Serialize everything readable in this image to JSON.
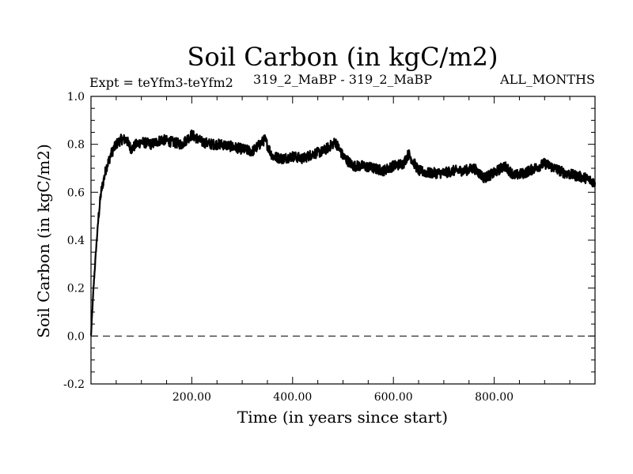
{
  "chart_data": {
    "type": "line",
    "title": "Soil Carbon (in kgC/m2)",
    "subtitle_left": "Expt = teYfm3-teYfm2",
    "subtitle_center": "319_2_MaBP - 319_2_MaBP",
    "subtitle_right": "ALL_MONTHS",
    "xlabel": "Time (in years since start)",
    "ylabel": "Soil Carbon (in kgC/m2)",
    "xlim": [
      0,
      1000
    ],
    "ylim": [
      -0.2,
      1.0
    ],
    "x_ticks": [
      200,
      400,
      600,
      800
    ],
    "x_tick_labels": [
      "200.00",
      "400.00",
      "600.00",
      "800.00"
    ],
    "y_ticks": [
      -0.2,
      0.0,
      0.2,
      0.4,
      0.6,
      0.8,
      1.0
    ],
    "y_tick_labels": [
      "-0.2",
      "0.0",
      "0.2",
      "0.4",
      "0.6",
      "0.8",
      "1.0"
    ],
    "reference_line": {
      "y": 0.0,
      "style": "dashed"
    },
    "series": [
      {
        "name": "Soil Carbon",
        "x": [
          0,
          5,
          10,
          15,
          20,
          25,
          30,
          40,
          50,
          60,
          70,
          80,
          90,
          100,
          120,
          140,
          160,
          180,
          200,
          220,
          240,
          260,
          280,
          300,
          320,
          345,
          360,
          380,
          400,
          420,
          440,
          460,
          485,
          500,
          520,
          540,
          560,
          580,
          600,
          620,
          630,
          650,
          670,
          700,
          720,
          740,
          760,
          780,
          800,
          820,
          840,
          860,
          880,
          900,
          920,
          940,
          960,
          980,
          1000
        ],
        "values": [
          0.0,
          0.2,
          0.36,
          0.5,
          0.6,
          0.65,
          0.7,
          0.76,
          0.8,
          0.82,
          0.82,
          0.78,
          0.8,
          0.81,
          0.8,
          0.82,
          0.81,
          0.8,
          0.84,
          0.81,
          0.8,
          0.8,
          0.79,
          0.78,
          0.77,
          0.82,
          0.75,
          0.74,
          0.75,
          0.74,
          0.76,
          0.77,
          0.81,
          0.75,
          0.71,
          0.71,
          0.7,
          0.69,
          0.71,
          0.72,
          0.76,
          0.69,
          0.68,
          0.68,
          0.69,
          0.69,
          0.7,
          0.66,
          0.68,
          0.71,
          0.67,
          0.68,
          0.7,
          0.72,
          0.7,
          0.68,
          0.67,
          0.66,
          0.64
        ]
      }
    ]
  }
}
